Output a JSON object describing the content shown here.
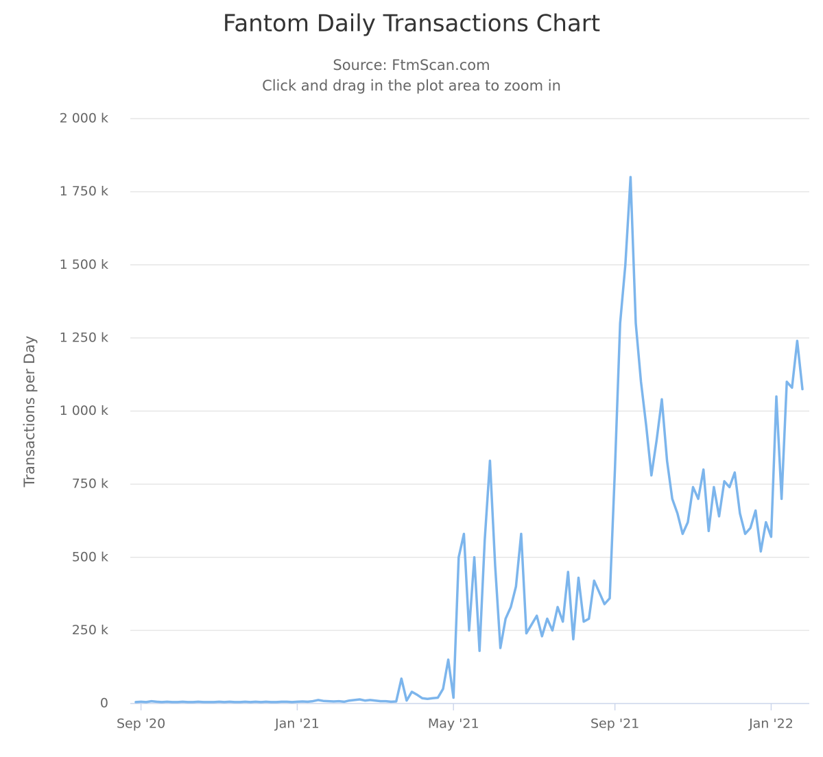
{
  "chart_data": {
    "type": "line",
    "title": "Fantom Daily Transactions Chart",
    "subtitle": [
      "Source: FtmScan.com",
      "Click and drag in the plot area to zoom in"
    ],
    "y_label": "Transactions per Day",
    "color": "#7cb5ec",
    "grid": true,
    "categories": [
      null,
      "Sep '20",
      null,
      null,
      null,
      null,
      null,
      null,
      null,
      null,
      null,
      null,
      null,
      null,
      null,
      null,
      null,
      null,
      null,
      null,
      null,
      null,
      null,
      null,
      null,
      null,
      null,
      null,
      null,
      null,
      null,
      "Jan '21",
      null,
      null,
      null,
      null,
      null,
      null,
      null,
      null,
      null,
      null,
      null,
      null,
      null,
      null,
      null,
      null,
      null,
      null,
      null,
      null,
      null,
      null,
      null,
      null,
      null,
      null,
      null,
      null,
      null,
      "May '21",
      null,
      null,
      null,
      null,
      null,
      null,
      null,
      null,
      null,
      null,
      null,
      null,
      null,
      null,
      null,
      null,
      null,
      null,
      null,
      null,
      null,
      null,
      null,
      null,
      null,
      null,
      null,
      null,
      null,
      null,
      "Sep '21",
      null,
      null,
      null,
      null,
      null,
      null,
      null,
      null,
      null,
      null,
      null,
      null,
      null,
      null,
      null,
      null,
      null,
      null,
      null,
      null,
      null,
      null,
      null,
      null,
      null,
      null,
      null,
      null,
      null,
      "Jan '22",
      null,
      null,
      null,
      null,
      null,
      null
    ],
    "values": [
      5,
      6,
      5,
      8,
      6,
      5,
      6,
      5,
      5,
      6,
      5,
      5,
      6,
      5,
      5,
      5,
      6,
      5,
      6,
      5,
      5,
      6,
      5,
      6,
      5,
      6,
      5,
      5,
      6,
      6,
      5,
      6,
      7,
      6,
      8,
      12,
      9,
      8,
      7,
      8,
      6,
      10,
      12,
      14,
      10,
      12,
      10,
      8,
      8,
      6,
      7,
      85,
      10,
      40,
      30,
      18,
      16,
      18,
      20,
      50,
      150,
      20,
      500,
      580,
      250,
      500,
      180,
      560,
      830,
      470,
      190,
      290,
      330,
      400,
      580,
      240,
      270,
      300,
      230,
      290,
      250,
      330,
      280,
      450,
      220,
      430,
      280,
      290,
      420,
      380,
      340,
      360,
      800,
      1300,
      1500,
      1800,
      1300,
      1100,
      950,
      780,
      900,
      1040,
      830,
      700,
      650,
      580,
      620,
      740,
      700,
      800,
      590,
      740,
      640,
      760,
      740,
      790,
      650,
      580,
      600,
      660,
      520,
      620,
      570,
      1050,
      700,
      1100,
      1080,
      1240,
      1075
    ],
    "ylim": [
      0,
      2000
    ],
    "yticks": [
      0,
      {
        "value": 250,
        "label": "250 k"
      },
      {
        "value": 500,
        "label": "500 k"
      },
      {
        "value": 750,
        "label": "750 k"
      },
      {
        "value": 1000,
        "label": "1 000 k"
      },
      {
        "value": 1250,
        "label": "1 250 k"
      },
      {
        "value": 1500,
        "label": "1 500 k"
      },
      {
        "value": 1750,
        "label": "1 750 k"
      },
      {
        "value": 2000,
        "label": "2 000 k"
      }
    ]
  }
}
